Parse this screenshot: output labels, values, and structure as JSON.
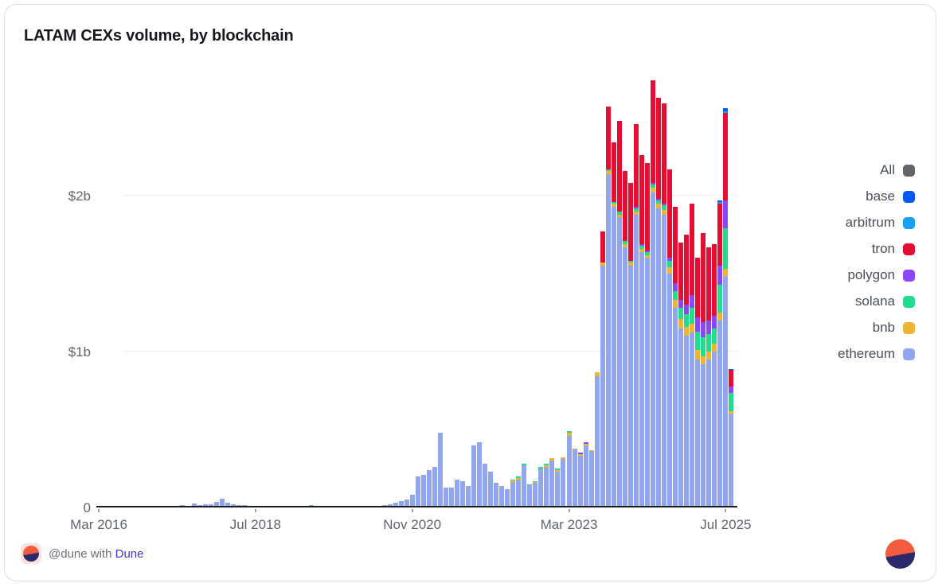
{
  "card": {
    "title": "LATAM CEXs volume, by blockchain"
  },
  "footer": {
    "attribution_prefix": "@dune with",
    "brand": "Dune"
  },
  "colors": {
    "card_border": "#dcddeb",
    "axis_line": "#191c21",
    "grid": "#ededf3",
    "axis_text": "#5f646c",
    "legend_text": "#4b4f57",
    "logo_orange": "#f25b3d",
    "logo_navy": "#2b286c",
    "brand_link": "#4134d1"
  },
  "legend": [
    {
      "label": "All",
      "color": "#636569"
    },
    {
      "label": "base",
      "color": "#0659f7"
    },
    {
      "label": "arbitrum",
      "color": "#17a2f8"
    },
    {
      "label": "tron",
      "color": "#e60d33"
    },
    {
      "label": "polygon",
      "color": "#8b47f7"
    },
    {
      "label": "solana",
      "color": "#20dc8c"
    },
    {
      "label": "bnb",
      "color": "#f0b434"
    },
    {
      "label": "ethereum",
      "color": "#90a7f0"
    }
  ],
  "chart_data": {
    "type": "bar",
    "stacked": true,
    "title": "LATAM CEXs volume, by blockchain",
    "xlabel": "",
    "ylabel": "",
    "ylim": [
      0,
      2.8
    ],
    "unit": "$ billions",
    "grid": "horizontal",
    "legend_position": "right",
    "x_freq": "monthly",
    "months": [
      "2016-03",
      "2016-04",
      "2016-05",
      "2016-06",
      "2016-07",
      "2016-08",
      "2016-09",
      "2016-10",
      "2016-11",
      "2016-12",
      "2017-01",
      "2017-02",
      "2017-03",
      "2017-04",
      "2017-05",
      "2017-06",
      "2017-07",
      "2017-08",
      "2017-09",
      "2017-10",
      "2017-11",
      "2017-12",
      "2018-01",
      "2018-02",
      "2018-03",
      "2018-04",
      "2018-05",
      "2018-06",
      "2018-07",
      "2018-08",
      "2018-09",
      "2018-10",
      "2018-11",
      "2018-12",
      "2019-01",
      "2019-02",
      "2019-03",
      "2019-04",
      "2019-05",
      "2019-06",
      "2019-07",
      "2019-08",
      "2019-09",
      "2019-10",
      "2019-11",
      "2019-12",
      "2020-01",
      "2020-02",
      "2020-03",
      "2020-04",
      "2020-05",
      "2020-06",
      "2020-07",
      "2020-08",
      "2020-09",
      "2020-10",
      "2020-11",
      "2020-12",
      "2021-01",
      "2021-02",
      "2021-03",
      "2021-04",
      "2021-05",
      "2021-06",
      "2021-07",
      "2021-08",
      "2021-09",
      "2021-10",
      "2021-11",
      "2021-12",
      "2022-01",
      "2022-02",
      "2022-03",
      "2022-04",
      "2022-05",
      "2022-06",
      "2022-07",
      "2022-08",
      "2022-09",
      "2022-10",
      "2022-11",
      "2022-12",
      "2023-01",
      "2023-02",
      "2023-03",
      "2023-04",
      "2023-05",
      "2023-06",
      "2023-07",
      "2023-08",
      "2023-09",
      "2023-10",
      "2023-11",
      "2023-12",
      "2024-01",
      "2024-02",
      "2024-03",
      "2024-04",
      "2024-05",
      "2024-06",
      "2024-07",
      "2024-08",
      "2024-09",
      "2024-10",
      "2024-11",
      "2024-12",
      "2025-01",
      "2025-02",
      "2025-03",
      "2025-04",
      "2025-05",
      "2025-06",
      "2025-07",
      "2025-08"
    ],
    "x_ticks": [
      {
        "label": "Mar 2016",
        "month_index": 0
      },
      {
        "label": "Jul 2018",
        "month_index": 28
      },
      {
        "label": "Nov 2020",
        "month_index": 56
      },
      {
        "label": "Mar 2023",
        "month_index": 84
      },
      {
        "label": "Jul 2025",
        "month_index": 112
      }
    ],
    "y_ticks": [
      {
        "label": "0",
        "value": 0
      },
      {
        "label": "$1b",
        "value": 1
      },
      {
        "label": "$2b",
        "value": 2
      }
    ],
    "stack_order": [
      "ethereum",
      "bnb",
      "solana",
      "polygon",
      "tron",
      "arbitrum",
      "base"
    ],
    "series": [
      {
        "name": "ethereum",
        "color": "#90a7f0",
        "values": [
          0,
          0,
          0,
          0,
          0,
          0.003,
          0,
          0.004,
          0,
          0.003,
          0,
          0.005,
          0,
          0.006,
          0.008,
          0.015,
          0.012,
          0.025,
          0.015,
          0.02,
          0.02,
          0.038,
          0.055,
          0.032,
          0.02,
          0.013,
          0.013,
          0.009,
          0.011,
          0.008,
          0.006,
          0.008,
          0.006,
          0.005,
          0.005,
          0.006,
          0.008,
          0.012,
          0.015,
          0.012,
          0.01,
          0.008,
          0.006,
          0.006,
          0.005,
          0.006,
          0.008,
          0.01,
          0.01,
          0.008,
          0.012,
          0.015,
          0.02,
          0.03,
          0.04,
          0.05,
          0.08,
          0.2,
          0.21,
          0.24,
          0.26,
          0.48,
          0.13,
          0.13,
          0.18,
          0.17,
          0.14,
          0.4,
          0.42,
          0.28,
          0.23,
          0.16,
          0.14,
          0.115,
          0.165,
          0.18,
          0.27,
          0.145,
          0.16,
          0.25,
          0.26,
          0.3,
          0.23,
          0.31,
          0.46,
          0.37,
          0.33,
          0.4,
          0.36,
          0.84,
          1.55,
          2.14,
          1.93,
          1.86,
          1.67,
          1.55,
          1.88,
          1.64,
          1.6,
          2.02,
          1.92,
          1.88,
          1.5,
          1.28,
          1.15,
          1.1,
          1.12,
          0.95,
          0.92,
          0.95,
          1.0,
          1.2,
          1.48,
          0.6
        ]
      },
      {
        "name": "bnb",
        "color": "#f0b434",
        "values": [
          0,
          0,
          0,
          0,
          0,
          0,
          0,
          0,
          0,
          0,
          0,
          0,
          0,
          0,
          0,
          0,
          0,
          0,
          0,
          0,
          0,
          0,
          0,
          0,
          0,
          0,
          0,
          0,
          0,
          0,
          0,
          0,
          0,
          0,
          0,
          0,
          0,
          0,
          0,
          0,
          0,
          0,
          0,
          0,
          0,
          0,
          0,
          0,
          0,
          0,
          0,
          0,
          0,
          0,
          0,
          0,
          0,
          0,
          0,
          0,
          0,
          0,
          0,
          0,
          0,
          0,
          0,
          0,
          0,
          0,
          0,
          0,
          0,
          0.005,
          0.01,
          0.01,
          0,
          0,
          0.005,
          0,
          0.01,
          0.015,
          0.01,
          0.01,
          0.02,
          0.01,
          0.01,
          0.01,
          0.01,
          0.03,
          0.02,
          0.02,
          0.02,
          0.02,
          0.02,
          0.02,
          0.02,
          0.02,
          0.02,
          0.03,
          0.03,
          0.03,
          0.04,
          0.05,
          0.06,
          0.06,
          0.06,
          0.06,
          0.05,
          0.05,
          0.05,
          0.05,
          0.05,
          0.015
        ]
      },
      {
        "name": "solana",
        "color": "#20dc8c",
        "values": [
          0,
          0,
          0,
          0,
          0,
          0,
          0,
          0,
          0,
          0,
          0,
          0,
          0,
          0,
          0,
          0,
          0,
          0,
          0,
          0,
          0,
          0,
          0,
          0,
          0,
          0,
          0,
          0,
          0,
          0,
          0,
          0,
          0,
          0,
          0,
          0,
          0,
          0,
          0,
          0,
          0,
          0,
          0,
          0,
          0,
          0,
          0,
          0,
          0,
          0,
          0,
          0,
          0,
          0,
          0,
          0,
          0,
          0,
          0,
          0,
          0,
          0,
          0,
          0,
          0,
          0,
          0,
          0,
          0,
          0,
          0,
          0,
          0,
          0,
          0.005,
          0.01,
          0.01,
          0.005,
          0.005,
          0.01,
          0.01,
          0,
          0.01,
          0,
          0.01,
          0,
          0,
          0,
          0,
          0,
          0,
          0.01,
          0.01,
          0.02,
          0.02,
          0.01,
          0.02,
          0.02,
          0.02,
          0.02,
          0.02,
          0.03,
          0.04,
          0.06,
          0.07,
          0.08,
          0.1,
          0.12,
          0.12,
          0.11,
          0.1,
          0.18,
          0.26,
          0.12
        ]
      },
      {
        "name": "polygon",
        "color": "#8b47f7",
        "values": [
          0,
          0,
          0,
          0,
          0,
          0,
          0,
          0,
          0,
          0,
          0,
          0,
          0,
          0,
          0,
          0,
          0,
          0,
          0,
          0,
          0,
          0,
          0,
          0,
          0,
          0,
          0,
          0,
          0,
          0,
          0,
          0,
          0,
          0,
          0,
          0,
          0,
          0,
          0,
          0,
          0,
          0,
          0,
          0,
          0,
          0,
          0,
          0,
          0,
          0,
          0,
          0,
          0,
          0,
          0,
          0,
          0,
          0,
          0,
          0,
          0,
          0,
          0,
          0,
          0,
          0,
          0,
          0,
          0,
          0,
          0,
          0,
          0,
          0,
          0,
          0,
          0,
          0,
          0,
          0,
          0,
          0,
          0,
          0,
          0,
          0,
          0.01,
          0.01,
          0,
          0,
          0,
          0,
          0,
          0,
          0,
          0,
          0.01,
          0.01,
          0.01,
          0.01,
          0.01,
          0.01,
          0.02,
          0.05,
          0.05,
          0.06,
          0.08,
          0.09,
          0.1,
          0.09,
          0.08,
          0.12,
          0.18,
          0.04
        ]
      },
      {
        "name": "tron",
        "color": "#e60d33",
        "values": [
          0,
          0,
          0,
          0,
          0,
          0,
          0,
          0,
          0,
          0,
          0,
          0,
          0,
          0,
          0,
          0,
          0,
          0,
          0,
          0,
          0,
          0,
          0,
          0,
          0,
          0,
          0,
          0,
          0,
          0,
          0,
          0,
          0,
          0,
          0,
          0,
          0,
          0,
          0,
          0,
          0,
          0,
          0,
          0,
          0,
          0,
          0,
          0,
          0,
          0,
          0,
          0,
          0,
          0,
          0,
          0,
          0,
          0,
          0,
          0,
          0,
          0,
          0,
          0,
          0,
          0,
          0,
          0,
          0,
          0,
          0,
          0,
          0,
          0,
          0,
          0,
          0,
          0,
          0,
          0,
          0,
          0,
          0,
          0,
          0,
          0,
          0,
          0,
          0,
          0,
          0.2,
          0.4,
          0.38,
          0.58,
          0.45,
          0.5,
          0.53,
          0.57,
          0.56,
          0.66,
          0.65,
          0.64,
          0.57,
          0.49,
          0.37,
          0.45,
          0.59,
          0.38,
          0.57,
          0.47,
          0.46,
          0.4,
          0.56,
          0.11
        ]
      },
      {
        "name": "arbitrum",
        "color": "#17a2f8",
        "values": [
          0,
          0,
          0,
          0,
          0,
          0,
          0,
          0,
          0,
          0,
          0,
          0,
          0,
          0,
          0,
          0,
          0,
          0,
          0,
          0,
          0,
          0,
          0,
          0,
          0,
          0,
          0,
          0,
          0,
          0,
          0,
          0,
          0,
          0,
          0,
          0,
          0,
          0,
          0,
          0,
          0,
          0,
          0,
          0,
          0,
          0,
          0,
          0,
          0,
          0,
          0,
          0,
          0,
          0,
          0,
          0,
          0,
          0,
          0,
          0,
          0,
          0,
          0,
          0,
          0,
          0,
          0,
          0,
          0,
          0,
          0,
          0,
          0,
          0,
          0,
          0,
          0,
          0,
          0,
          0,
          0,
          0,
          0,
          0,
          0,
          0,
          0,
          0,
          0,
          0,
          0,
          0,
          0,
          0,
          0,
          0,
          0,
          0,
          0,
          0,
          0,
          0,
          0,
          0,
          0,
          0,
          0,
          0,
          0,
          0,
          0,
          0.01,
          0.01,
          0
        ]
      },
      {
        "name": "base",
        "color": "#0659f7",
        "values": [
          0,
          0,
          0,
          0,
          0,
          0,
          0,
          0,
          0,
          0,
          0,
          0,
          0,
          0,
          0,
          0,
          0,
          0,
          0,
          0,
          0,
          0,
          0,
          0,
          0,
          0,
          0,
          0,
          0,
          0,
          0,
          0,
          0,
          0,
          0,
          0,
          0,
          0,
          0,
          0,
          0,
          0,
          0,
          0,
          0,
          0,
          0,
          0,
          0,
          0,
          0,
          0,
          0,
          0,
          0,
          0,
          0,
          0,
          0,
          0,
          0,
          0,
          0,
          0,
          0,
          0,
          0,
          0,
          0,
          0,
          0,
          0,
          0,
          0,
          0,
          0,
          0,
          0,
          0,
          0,
          0,
          0,
          0,
          0,
          0,
          0,
          0,
          0,
          0,
          0,
          0,
          0,
          0,
          0,
          0,
          0,
          0,
          0,
          0,
          0,
          0,
          0,
          0,
          0,
          0,
          0,
          0,
          0,
          0,
          0,
          0,
          0.01,
          0.02,
          0.005
        ]
      }
    ]
  }
}
